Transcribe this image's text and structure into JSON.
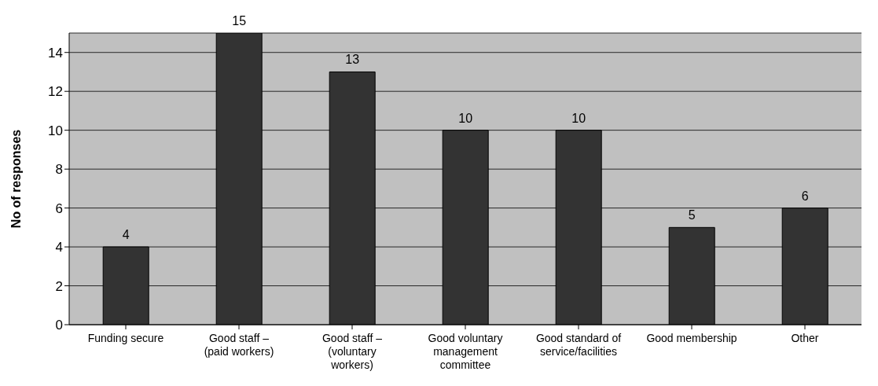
{
  "chart_data": {
    "type": "bar",
    "ylabel": "No of responses",
    "categories": [
      "Funding secure",
      "Good staff – (paid workers)",
      "Good staff – (voluntary workers)",
      "Good voluntary management committee",
      "Good standard of service/facilities",
      "Good membership",
      "Other"
    ],
    "values": [
      4,
      15,
      13,
      10,
      10,
      5,
      6
    ],
    "color": "#333333",
    "ylim": [
      0,
      15
    ],
    "yticks": [
      0,
      2,
      4,
      6,
      8,
      10,
      12,
      14
    ],
    "grid": "y",
    "data_labels": true,
    "legend": false
  }
}
